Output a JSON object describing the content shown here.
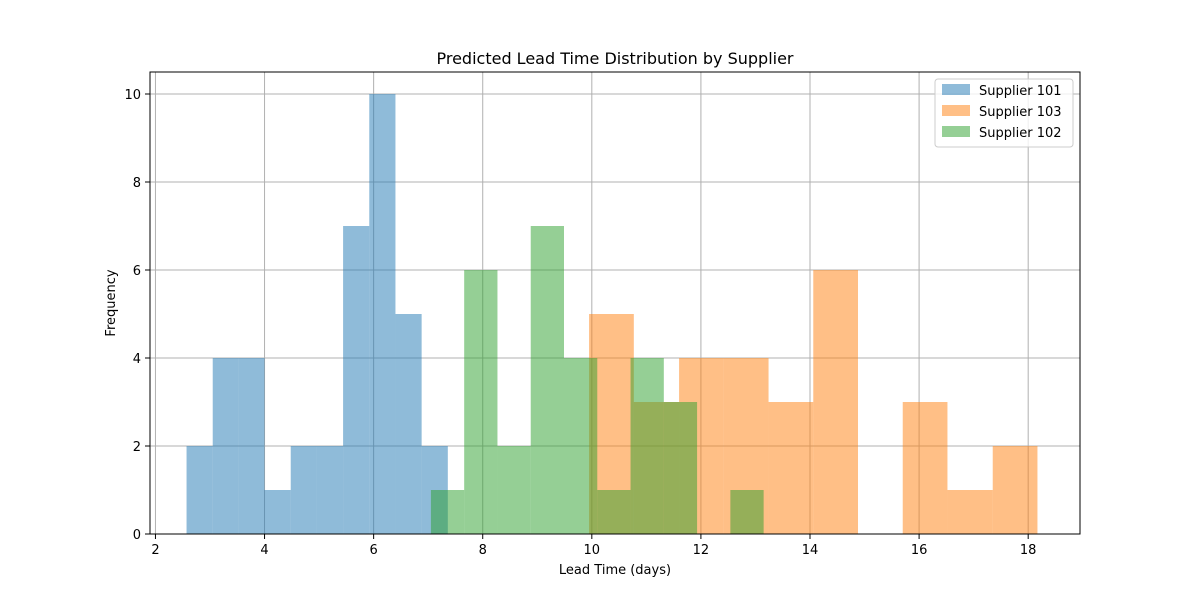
{
  "chart_data": {
    "type": "bar",
    "title": "Predicted Lead Time Distribution by Supplier",
    "xlabel": "Lead Time (days)",
    "ylabel": "Frequency",
    "xlim": [
      1.9,
      18.95
    ],
    "ylim": [
      0,
      10.5
    ],
    "xticks": [
      2,
      4,
      6,
      8,
      10,
      12,
      14,
      16,
      18
    ],
    "yticks": [
      0,
      2,
      4,
      6,
      8,
      10
    ],
    "grid": true,
    "legend_position": "top-right",
    "series": [
      {
        "name": "Supplier 101",
        "color": "#1f77b4",
        "opacity": 0.5,
        "bins": [
          {
            "x0": 2.57,
            "x1": 3.05,
            "count": 2
          },
          {
            "x0": 3.05,
            "x1": 3.52,
            "count": 4
          },
          {
            "x0": 3.52,
            "x1": 4.0,
            "count": 4
          },
          {
            "x0": 4.0,
            "x1": 4.48,
            "count": 1
          },
          {
            "x0": 4.48,
            "x1": 4.96,
            "count": 2
          },
          {
            "x0": 4.96,
            "x1": 5.44,
            "count": 2
          },
          {
            "x0": 5.44,
            "x1": 5.92,
            "count": 7
          },
          {
            "x0": 5.92,
            "x1": 6.4,
            "count": 10
          },
          {
            "x0": 6.4,
            "x1": 6.88,
            "count": 5
          },
          {
            "x0": 6.88,
            "x1": 7.36,
            "count": 2
          }
        ]
      },
      {
        "name": "Supplier 103",
        "color": "#ff7f0e",
        "opacity": 0.5,
        "bins": [
          {
            "x0": 7.36,
            "x1": 7.4,
            "count": 0
          },
          {
            "x0": 9.95,
            "x1": 10.77,
            "count": 5
          },
          {
            "x0": 10.77,
            "x1": 11.6,
            "count": 3
          },
          {
            "x0": 11.6,
            "x1": 12.42,
            "count": 4
          },
          {
            "x0": 12.42,
            "x1": 13.24,
            "count": 4
          },
          {
            "x0": 13.24,
            "x1": 14.06,
            "count": 3
          },
          {
            "x0": 14.06,
            "x1": 14.88,
            "count": 6
          },
          {
            "x0": 14.88,
            "x1": 15.7,
            "count": 0
          },
          {
            "x0": 15.7,
            "x1": 16.52,
            "count": 3
          },
          {
            "x0": 16.52,
            "x1": 17.35,
            "count": 1
          },
          {
            "x0": 17.35,
            "x1": 18.17,
            "count": 2
          }
        ]
      },
      {
        "name": "Supplier 102",
        "color": "#2ca02c",
        "opacity": 0.5,
        "bins": [
          {
            "x0": 7.05,
            "x1": 7.66,
            "count": 1
          },
          {
            "x0": 7.66,
            "x1": 8.27,
            "count": 6
          },
          {
            "x0": 8.27,
            "x1": 8.88,
            "count": 2
          },
          {
            "x0": 8.88,
            "x1": 9.49,
            "count": 7
          },
          {
            "x0": 9.49,
            "x1": 10.1,
            "count": 4
          },
          {
            "x0": 10.1,
            "x1": 10.71,
            "count": 1
          },
          {
            "x0": 10.71,
            "x1": 11.32,
            "count": 4
          },
          {
            "x0": 11.32,
            "x1": 11.93,
            "count": 3
          },
          {
            "x0": 11.93,
            "x1": 12.54,
            "count": 0
          },
          {
            "x0": 12.54,
            "x1": 13.15,
            "count": 1
          }
        ]
      }
    ]
  }
}
